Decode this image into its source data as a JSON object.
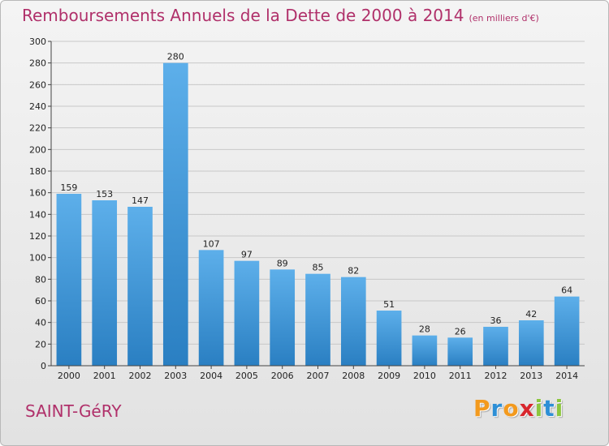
{
  "chart_data": {
    "type": "bar",
    "title": "Remboursements Annuels de la Dette de 2000 à 2014",
    "subtitle": "(en milliers d'€)",
    "categories": [
      "2000",
      "2001",
      "2002",
      "2003",
      "2004",
      "2005",
      "2006",
      "2007",
      "2008",
      "2009",
      "2010",
      "2011",
      "2012",
      "2013",
      "2014"
    ],
    "values": [
      159,
      153,
      147,
      280,
      107,
      97,
      89,
      85,
      82,
      51,
      28,
      26,
      36,
      42,
      64
    ],
    "value_labels": [
      "159",
      "153",
      "147",
      "280",
      "107",
      "97",
      "89",
      "85",
      "82",
      "51",
      "28",
      "26",
      "36",
      "42",
      "64"
    ],
    "ylim": [
      0,
      300
    ],
    "yticks": [
      "0",
      "20",
      "40",
      "60",
      "80",
      "100",
      "120",
      "140",
      "160",
      "180",
      "200",
      "220",
      "240",
      "260",
      "280",
      "300"
    ],
    "grid": true,
    "bar_color_light": "#5dafea",
    "bar_color_dark": "#2a7fc2"
  },
  "footer": {
    "place": "SAINT-GéRY",
    "brand_letters": [
      "P",
      "r",
      "o",
      "x",
      "i",
      "t",
      "i"
    ],
    "brand_colors": [
      "#f39a1e",
      "#2d8fd6",
      "#f39a1e",
      "#d8262d",
      "#8cc63f",
      "#2d8fd6",
      "#8cc63f"
    ]
  },
  "colors": {
    "accent": "#b0306a",
    "grid": "#c8c8c8"
  }
}
